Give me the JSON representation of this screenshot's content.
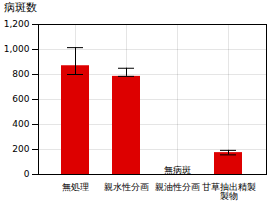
{
  "chart_data": {
    "type": "bar",
    "ylabel": "病斑数",
    "categories": [
      "無処理",
      "親水性分画",
      "親油性分画",
      "甘草抽出精製\n製物"
    ],
    "values": [
      870,
      785,
      0,
      175
    ],
    "error_upper": [
      145,
      65,
      0,
      18
    ],
    "error_lower": [
      70,
      0,
      0,
      18
    ],
    "color": "#dd0000",
    "ylim": [
      0,
      1200
    ],
    "yticks": [
      0,
      200,
      400,
      600,
      800,
      1000,
      1200
    ],
    "grid": true,
    "annotations": [
      {
        "text": "無病斑",
        "x": "親油性分画",
        "y": 10
      }
    ]
  }
}
